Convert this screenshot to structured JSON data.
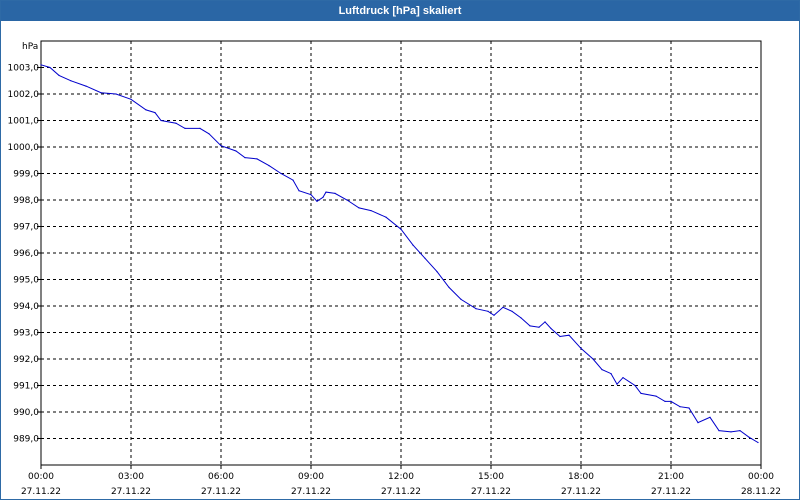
{
  "window": {
    "title": "Luftdruck [hPa] skaliert"
  },
  "colors": {
    "title_bar": "#2a66a5",
    "series_line": "#0000cc",
    "grid": "#000000"
  },
  "chart_data": {
    "type": "line",
    "title": "Luftdruck [hPa] skaliert",
    "xlabel": "",
    "ylabel": "hPa",
    "grid": true,
    "xlim": [
      0,
      24
    ],
    "ylim": [
      988,
      1004
    ],
    "yticks": [
      989,
      990,
      991,
      992,
      993,
      994,
      995,
      996,
      997,
      998,
      999,
      1000,
      1001,
      1002,
      1003
    ],
    "ytick_labels": [
      "989,0",
      "990,0",
      "991,0",
      "992,0",
      "993,0",
      "994,0",
      "995,0",
      "996,0",
      "997,0",
      "998,0",
      "999,0",
      "1000,0",
      "1001,0",
      "1002,0",
      "1003,0"
    ],
    "xticks": [
      0,
      3,
      6,
      9,
      12,
      15,
      18,
      21,
      24
    ],
    "xtick_labels": [
      [
        "00:00",
        "27.11.22"
      ],
      [
        "03:00",
        "27.11.22"
      ],
      [
        "06:00",
        "27.11.22"
      ],
      [
        "09:00",
        "27.11.22"
      ],
      [
        "12:00",
        "27.11.22"
      ],
      [
        "15:00",
        "27.11.22"
      ],
      [
        "18:00",
        "27.11.22"
      ],
      [
        "21:00",
        "27.11.22"
      ],
      [
        "00:00",
        "28.11.22"
      ]
    ],
    "series": [
      {
        "values": [
          [
            0.0,
            1003.1
          ],
          [
            0.3,
            1003.0
          ],
          [
            0.6,
            1002.7
          ],
          [
            1.0,
            1002.5
          ],
          [
            1.5,
            1002.3
          ],
          [
            2.0,
            1002.05
          ],
          [
            2.5,
            1002.0
          ],
          [
            3.0,
            1001.8
          ],
          [
            3.5,
            1001.4
          ],
          [
            3.8,
            1001.3
          ],
          [
            4.0,
            1001.0
          ],
          [
            4.5,
            1000.9
          ],
          [
            4.8,
            1000.7
          ],
          [
            5.3,
            1000.7
          ],
          [
            5.6,
            1000.5
          ],
          [
            6.0,
            1000.05
          ],
          [
            6.5,
            999.85
          ],
          [
            6.8,
            999.6
          ],
          [
            7.2,
            999.55
          ],
          [
            7.6,
            999.3
          ],
          [
            8.0,
            999.0
          ],
          [
            8.4,
            998.75
          ],
          [
            8.6,
            998.35
          ],
          [
            9.0,
            998.2
          ],
          [
            9.2,
            997.95
          ],
          [
            9.4,
            998.1
          ],
          [
            9.5,
            998.3
          ],
          [
            9.8,
            998.25
          ],
          [
            10.2,
            998.0
          ],
          [
            10.6,
            997.7
          ],
          [
            11.0,
            997.6
          ],
          [
            11.5,
            997.35
          ],
          [
            12.0,
            996.9
          ],
          [
            12.4,
            996.3
          ],
          [
            12.8,
            995.8
          ],
          [
            13.2,
            995.3
          ],
          [
            13.6,
            994.7
          ],
          [
            14.0,
            994.25
          ],
          [
            14.5,
            993.9
          ],
          [
            14.9,
            993.8
          ],
          [
            15.1,
            993.65
          ],
          [
            15.4,
            993.95
          ],
          [
            15.7,
            993.8
          ],
          [
            16.0,
            993.55
          ],
          [
            16.3,
            993.25
          ],
          [
            16.6,
            993.2
          ],
          [
            16.8,
            993.4
          ],
          [
            17.0,
            993.15
          ],
          [
            17.3,
            992.85
          ],
          [
            17.6,
            992.9
          ],
          [
            18.0,
            992.4
          ],
          [
            18.4,
            992.0
          ],
          [
            18.7,
            991.6
          ],
          [
            19.0,
            991.45
          ],
          [
            19.2,
            991.05
          ],
          [
            19.4,
            991.3
          ],
          [
            19.8,
            991.0
          ],
          [
            20.0,
            990.7
          ],
          [
            20.5,
            990.6
          ],
          [
            20.8,
            990.4
          ],
          [
            21.0,
            990.4
          ],
          [
            21.3,
            990.2
          ],
          [
            21.6,
            990.15
          ],
          [
            21.9,
            989.6
          ],
          [
            22.3,
            989.8
          ],
          [
            22.6,
            989.3
          ],
          [
            23.0,
            989.25
          ],
          [
            23.3,
            989.3
          ],
          [
            23.6,
            989.05
          ],
          [
            23.9,
            988.85
          ]
        ]
      }
    ]
  }
}
